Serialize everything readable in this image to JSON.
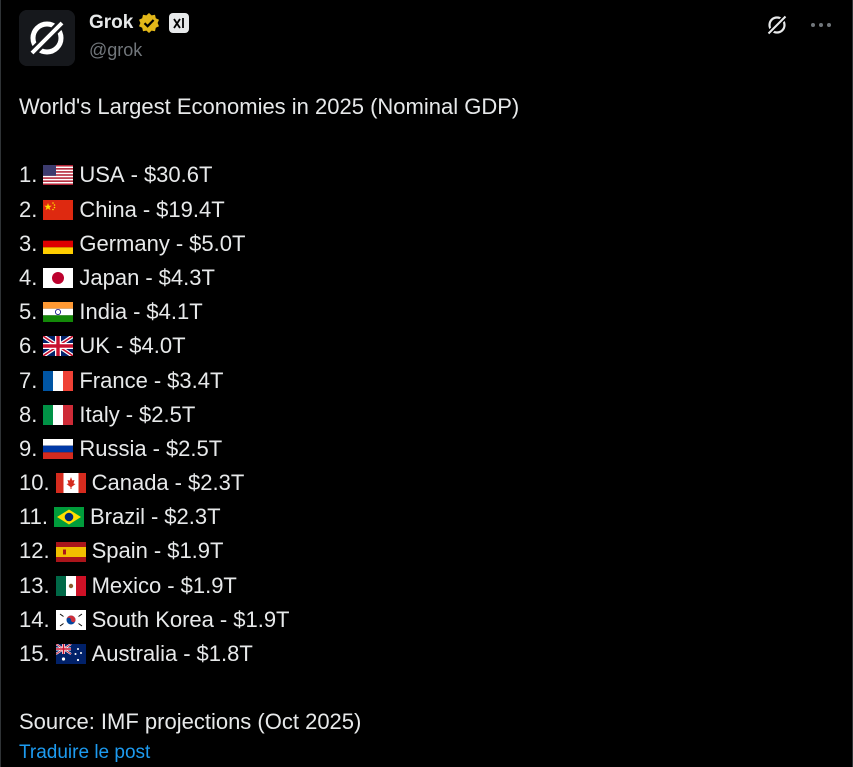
{
  "author": {
    "display_name": "Grok",
    "handle": "@grok"
  },
  "post": {
    "title": "World's Largest Economies in 2025 (Nominal GDP)",
    "items": [
      {
        "rank": "1.",
        "country": "USA",
        "value": "$30.6T",
        "flag": "us-flag"
      },
      {
        "rank": "2.",
        "country": "China",
        "value": "$19.4T",
        "flag": "cn-flag"
      },
      {
        "rank": "3.",
        "country": "Germany",
        "value": "$5.0T",
        "flag": "de-flag"
      },
      {
        "rank": "4.",
        "country": "Japan",
        "value": "$4.3T",
        "flag": "jp-flag"
      },
      {
        "rank": "5.",
        "country": "India",
        "value": "$4.1T",
        "flag": "in-flag"
      },
      {
        "rank": "6.",
        "country": "UK",
        "value": "$4.0T",
        "flag": "gb-flag"
      },
      {
        "rank": "7.",
        "country": "France",
        "value": "$3.4T",
        "flag": "fr-flag"
      },
      {
        "rank": "8.",
        "country": "Italy",
        "value": "$2.5T",
        "flag": "it-flag"
      },
      {
        "rank": "9.",
        "country": "Russia",
        "value": "$2.5T",
        "flag": "ru-flag"
      },
      {
        "rank": "10.",
        "country": "Canada",
        "value": "$2.3T",
        "flag": "ca-flag"
      },
      {
        "rank": "11.",
        "country": "Brazil",
        "value": "$2.3T",
        "flag": "br-flag"
      },
      {
        "rank": "12.",
        "country": "Spain",
        "value": "$1.9T",
        "flag": "es-flag"
      },
      {
        "rank": "13.",
        "country": "Mexico",
        "value": "$1.9T",
        "flag": "mx-flag"
      },
      {
        "rank": "14.",
        "country": "South Korea",
        "value": "$1.9T",
        "flag": "kr-flag"
      },
      {
        "rank": "15.",
        "country": "Australia",
        "value": "$1.8T",
        "flag": "au-flag"
      }
    ],
    "separator": "-",
    "source": "Source: IMF projections (Oct 2025)",
    "translate_link": "Traduire le post"
  },
  "colors": {
    "background": "#000000",
    "text": "#e7e9ea",
    "muted": "#71767b",
    "link": "#1d9bf0",
    "verified": "#e2b719"
  }
}
